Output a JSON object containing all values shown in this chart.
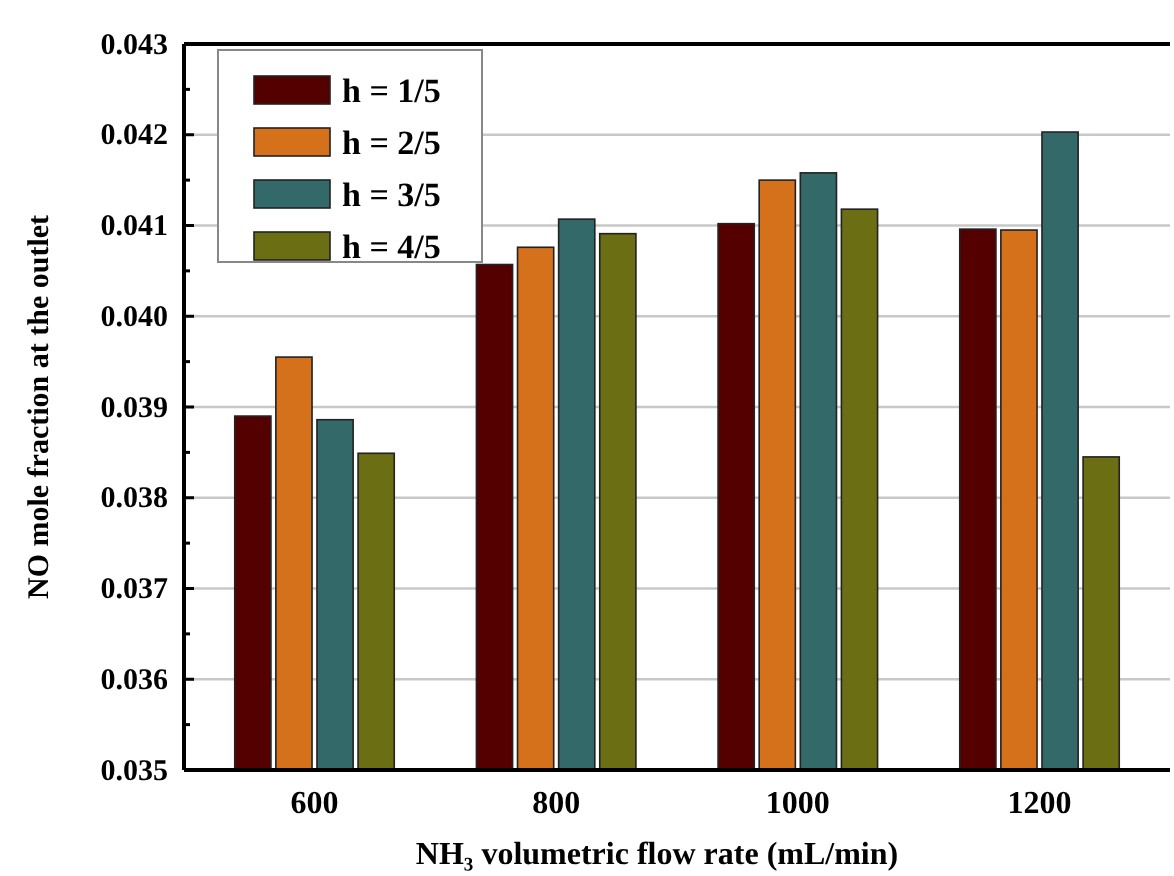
{
  "chart_data": {
    "type": "bar",
    "xlabel": "NH₃ volumetric flow rate (mL/min)",
    "ylabel": "NO mole fraction at the outlet",
    "categories": [
      "600",
      "800",
      "1000",
      "1200"
    ],
    "series": [
      {
        "name": "h = 1/5",
        "color": "#540000",
        "values": [
          0.0389,
          0.04057,
          0.04102,
          0.04096
        ]
      },
      {
        "name": "h = 2/5",
        "color": "#d5711b",
        "values": [
          0.03955,
          0.04076,
          0.0415,
          0.04095
        ]
      },
      {
        "name": "h = 3/5",
        "color": "#336969",
        "values": [
          0.03886,
          0.04107,
          0.04158,
          0.04203
        ]
      },
      {
        "name": "h = 4/5",
        "color": "#6b6e12",
        "values": [
          0.03849,
          0.04091,
          0.04118,
          0.03845
        ]
      }
    ],
    "ylim": [
      0.035,
      0.043
    ],
    "yticks": [
      0.035,
      {
        "value": 0.0355,
        "label": null
      },
      0.036,
      {
        "value": 0.0365,
        "label": null
      },
      0.037,
      {
        "value": 0.0375,
        "label": null
      },
      0.038,
      {
        "value": 0.0385,
        "label": null
      },
      0.039,
      {
        "value": 0.0395,
        "label": null
      },
      {
        "value": 0.04,
        "label": "0.040"
      },
      {
        "value": 0.0405,
        "label": null
      },
      0.041,
      {
        "value": 0.0415,
        "label": null
      },
      0.042,
      {
        "value": 0.0425,
        "label": null
      },
      0.043
    ],
    "grid": "y",
    "legend": "top left"
  }
}
